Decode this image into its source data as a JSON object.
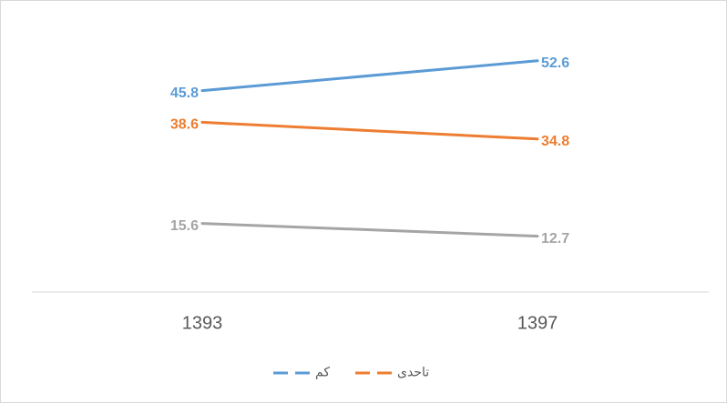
{
  "chart_data": {
    "type": "line",
    "categories": [
      "1393",
      "1397"
    ],
    "series": [
      {
        "name": "کم",
        "color": "#5b9bd5",
        "values": [
          45.8,
          52.6
        ]
      },
      {
        "name": "تاحدی",
        "color": "#ed7d31",
        "values": [
          38.6,
          34.8
        ]
      },
      {
        "color": "#a5a5a5",
        "values": [
          15.6,
          12.7
        ]
      }
    ],
    "ylim": [
      0,
      60
    ],
    "legend": "bottom"
  }
}
